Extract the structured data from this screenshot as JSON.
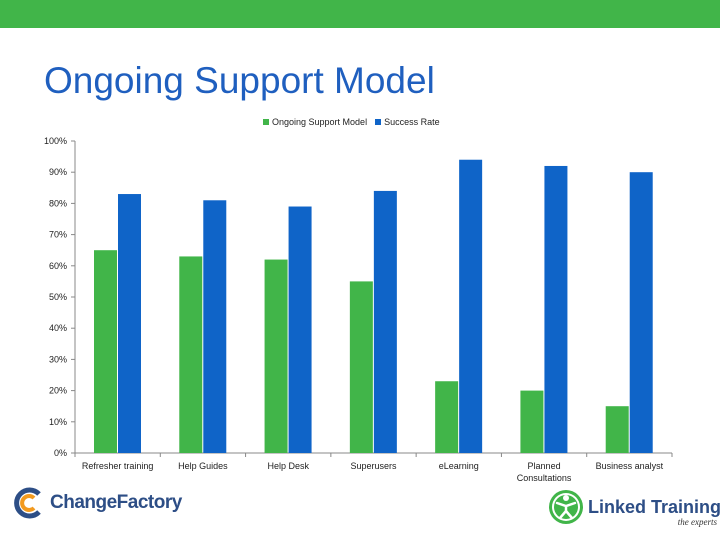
{
  "slide": {
    "title": "Ongoing Support Model"
  },
  "colors": {
    "top_bar": "#41b549",
    "title": "#1f5fbf",
    "series_green": "#41b549",
    "series_blue": "#0f64c8"
  },
  "chart_data": {
    "type": "bar",
    "title": "",
    "xlabel": "",
    "ylabel": "",
    "ylim": [
      0,
      100
    ],
    "y_ticks": [
      "0%",
      "10%",
      "20%",
      "30%",
      "40%",
      "50%",
      "60%",
      "70%",
      "80%",
      "90%",
      "100%"
    ],
    "grid": false,
    "legend_position": "top",
    "categories": [
      [
        "Refresher training"
      ],
      [
        "Help Guides"
      ],
      [
        "Help Desk"
      ],
      [
        "Superusers"
      ],
      [
        "eLearning"
      ],
      [
        "Planned",
        "Consultations"
      ],
      [
        "Business analyst"
      ]
    ],
    "series": [
      {
        "name": "Ongoing Support Model",
        "color": "#41b549",
        "values": [
          65,
          63,
          62,
          55,
          23,
          20,
          15
        ]
      },
      {
        "name": "Success Rate",
        "color": "#0f64c8",
        "values": [
          83,
          81,
          79,
          84,
          94,
          92,
          90
        ]
      }
    ]
  },
  "logos": {
    "left": {
      "text": "ChangeFactory"
    },
    "right": {
      "text": "Linked Training",
      "tagline": "the experts"
    }
  }
}
